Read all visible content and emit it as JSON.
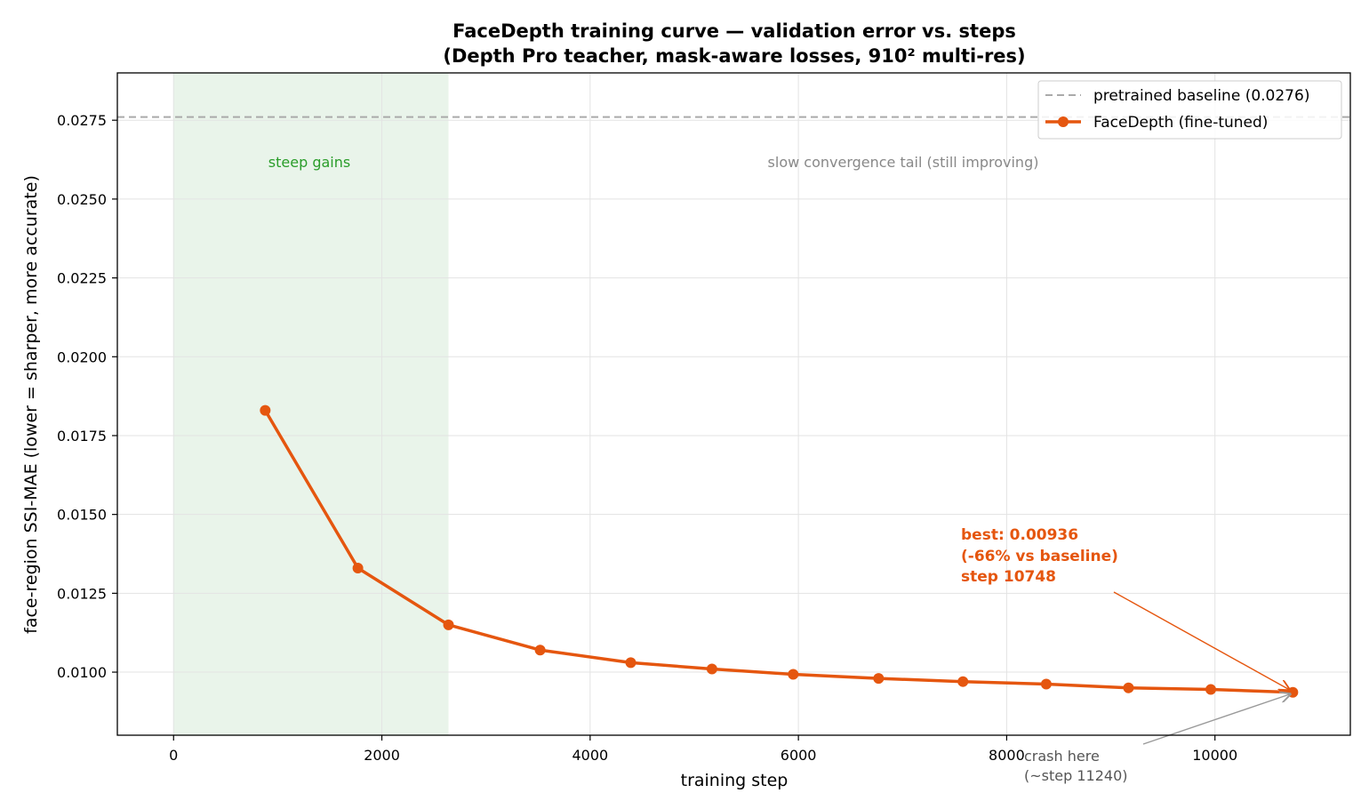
{
  "chart_data": {
    "type": "line",
    "title": [
      "FaceDepth training curve — validation error vs. steps",
      "(Depth Pro teacher, mask-aware losses, 910² multi-res)"
    ],
    "xlabel": "training step",
    "ylabel": "face-region SSI-MAE  (lower = sharper, more accurate)",
    "xlim": [
      -540,
      11300
    ],
    "ylim": [
      0.008,
      0.029
    ],
    "xticks": [
      0,
      2000,
      4000,
      6000,
      8000,
      10000
    ],
    "xtick_labels": [
      "0",
      "2000",
      "4000",
      "6000",
      "8000",
      "10000"
    ],
    "yticks": [
      0.01,
      0.0125,
      0.015,
      0.0175,
      0.02,
      0.0225,
      0.025,
      0.0275
    ],
    "ytick_labels": [
      "0.0100",
      "0.0125",
      "0.0150",
      "0.0175",
      "0.0200",
      "0.0225",
      "0.0250",
      "0.0275"
    ],
    "grid": true,
    "legend_position": "top-right",
    "series": [
      {
        "name": "FaceDepth (fine-tuned)",
        "color": "#e5560f",
        "x": [
          880,
          1770,
          2640,
          3520,
          4390,
          5170,
          5950,
          6770,
          7580,
          8380,
          9170,
          9960,
          10748
        ],
        "y": [
          0.0183,
          0.0133,
          0.0115,
          0.0107,
          0.0103,
          0.0101,
          0.00993,
          0.0098,
          0.0097,
          0.00962,
          0.0095,
          0.00945,
          0.00936
        ]
      }
    ],
    "baseline": {
      "name": "pretrained baseline (0.0276)",
      "value": 0.0276,
      "color": "#aaaaaa"
    },
    "shaded_region": {
      "x_range": [
        0,
        2640
      ],
      "color": "#e9f4ea",
      "label": "steep gains",
      "label_color": "#2a9d2a"
    },
    "tail_label": {
      "text": "slow convergence tail (still improving)",
      "color": "#888888"
    },
    "best_annotation": {
      "lines": [
        "best: 0.00936",
        "(-66% vs baseline)",
        "step 10748"
      ],
      "color": "#e5560f",
      "point": [
        10748,
        0.00936
      ]
    },
    "crash_annotation": {
      "lines": [
        "crash here",
        "(~step 11240)"
      ],
      "color": "#555555",
      "point": [
        10748,
        0.00936
      ]
    }
  }
}
